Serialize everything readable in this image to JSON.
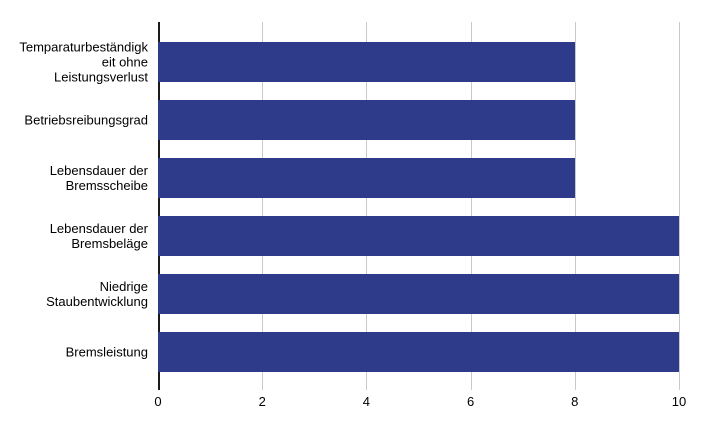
{
  "chart_data": {
    "type": "bar",
    "orientation": "horizontal",
    "title": "",
    "categories": [
      "Temparaturbeständigkeit ohne Leistungsverlust",
      "Betriebsreibungsgrad",
      "Lebensdauer der Bremsscheibe",
      "Lebensdauer der Bremsbeläge",
      "Niedrige Staubentwicklung",
      "Bremsleistung"
    ],
    "label_lines": [
      [
        "Temparaturbeständigk",
        "eit ohne",
        "Leistungsverlust"
      ],
      [
        "Betriebsreibungsgrad"
      ],
      [
        "Lebensdauer der",
        "Bremsscheibe"
      ],
      [
        "Lebensdauer der",
        "Bremsbeläge"
      ],
      [
        "Niedrige",
        "Staubentwicklung"
      ],
      [
        "Bremsleistung"
      ]
    ],
    "values": [
      8,
      8,
      8,
      10,
      10,
      10
    ],
    "x_ticks": [
      0,
      2,
      4,
      6,
      8,
      10
    ],
    "xlim": [
      0,
      10
    ],
    "xlabel": "",
    "ylabel": "",
    "grid": "vertical-only",
    "legend": "none",
    "colors": {
      "bar": "#2e3a8a",
      "gridline": "#c9c9c9",
      "axis": "#1a1a1a",
      "text": "#000000",
      "background": "#ffffff"
    }
  }
}
